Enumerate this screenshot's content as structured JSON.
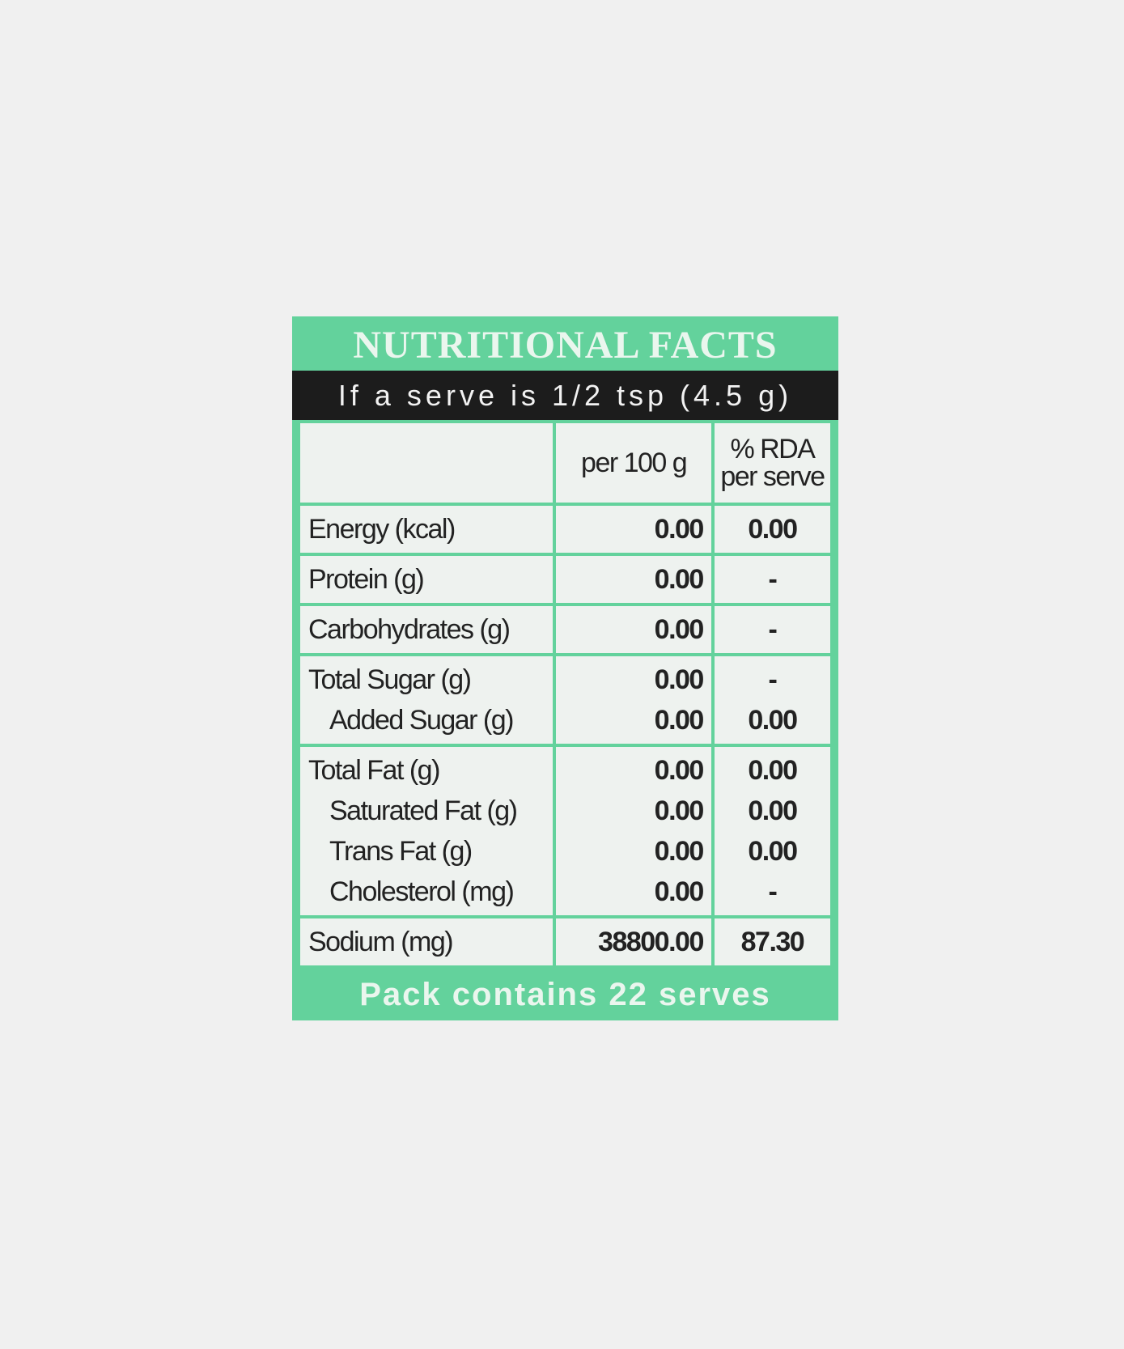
{
  "title": "NUTRITIONAL FACTS",
  "serve": "If a serve is 1/2 tsp (4.5 g)",
  "table": {
    "header": [
      "per 100 g",
      "% RDA per serve"
    ],
    "groups": [
      [
        {
          "label": "Energy (kcal)",
          "per100": "0.00",
          "rda": "0.00"
        }
      ],
      [
        {
          "label": "Protein (g)",
          "per100": "0.00",
          "rda": "-"
        }
      ],
      [
        {
          "label": "Carbohydrates (g)",
          "per100": "0.00",
          "rda": "-"
        }
      ],
      [
        {
          "label": "Total Sugar (g)",
          "per100": "0.00",
          "rda": "-"
        },
        {
          "label": "Added Sugar (g)",
          "per100": "0.00",
          "rda": "0.00"
        }
      ],
      [
        {
          "label": "Total Fat (g)",
          "per100": "0.00",
          "rda": "0.00"
        },
        {
          "label": "Saturated Fat (g)",
          "per100": "0.00",
          "rda": "0.00"
        },
        {
          "label": "Trans Fat (g)",
          "per100": "0.00",
          "rda": "0.00"
        },
        {
          "label": "Cholesterol (mg)",
          "per100": "0.00",
          "rda": "-"
        }
      ],
      [
        {
          "label": "Sodium (mg)",
          "per100": "38800.00",
          "rda": "87.30"
        }
      ]
    ]
  },
  "footer": "Pack contains 22 serves"
}
